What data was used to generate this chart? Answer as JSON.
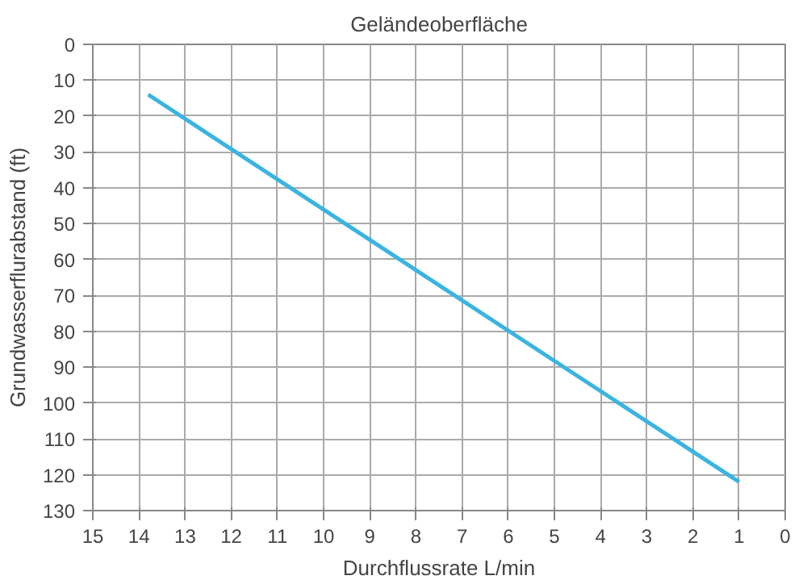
{
  "chart_data": {
    "type": "line",
    "title": "Geländeoberfläche",
    "xlabel": "Durchflussrate L/min",
    "ylabel": "Grundwasserflurabstand (ft)",
    "x": [
      13.8,
      1.0
    ],
    "series": [
      {
        "color": "#3ab4e0",
        "values": [
          14,
          122
        ]
      }
    ],
    "xlim": [
      15,
      0
    ],
    "xticks": [
      15,
      14,
      13,
      12,
      11,
      10,
      9,
      8,
      7,
      6,
      5,
      4,
      3,
      2,
      1,
      0
    ],
    "ylim": [
      130,
      0
    ],
    "yticks": [
      0,
      10,
      20,
      30,
      40,
      50,
      60,
      70,
      80,
      90,
      100,
      110,
      120,
      130
    ],
    "grid": true,
    "marker": "none",
    "line_style": "solid"
  }
}
